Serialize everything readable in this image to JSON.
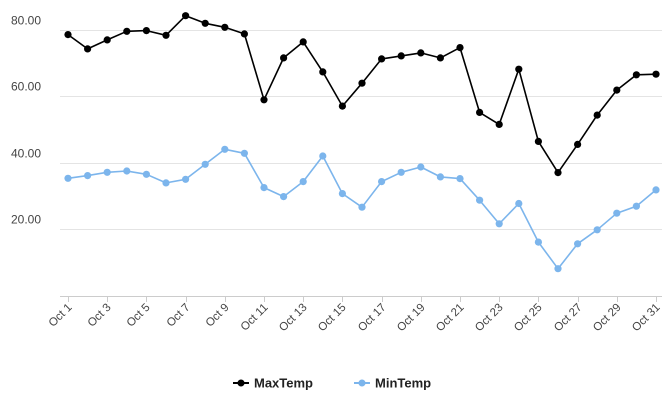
{
  "chart_data": {
    "type": "line",
    "title": "",
    "xlabel": "",
    "ylabel": "",
    "categories": [
      "Oct 1",
      "Oct 2",
      "Oct 3",
      "Oct 4",
      "Oct 5",
      "Oct 6",
      "Oct 7",
      "Oct 8",
      "Oct 9",
      "Oct 10",
      "Oct 11",
      "Oct 12",
      "Oct 13",
      "Oct 14",
      "Oct 15",
      "Oct 16",
      "Oct 17",
      "Oct 18",
      "Oct 19",
      "Oct 20",
      "Oct 21",
      "Oct 22",
      "Oct 23",
      "Oct 24",
      "Oct 25",
      "Oct 26",
      "Oct 27",
      "Oct 28",
      "Oct 29",
      "Oct 30",
      "Oct 31"
    ],
    "tick_labels": [
      "Oct 1",
      "Oct 3",
      "Oct 5",
      "Oct 7",
      "Oct 9",
      "Oct 11",
      "Oct 13",
      "Oct 15",
      "Oct 17",
      "Oct 19",
      "Oct 21",
      "Oct 23",
      "Oct 25",
      "Oct 27",
      "Oct 29",
      "Oct 31"
    ],
    "yticks": [
      {
        "value": 20,
        "label": "20.00"
      },
      {
        "value": 40,
        "label": "40.00"
      },
      {
        "value": 60,
        "label": "60.00"
      },
      {
        "value": 80,
        "label": "80.00"
      }
    ],
    "ylim": [
      0,
      86
    ],
    "grid": true,
    "legend_position": "bottom-center",
    "series": [
      {
        "name": "MaxTemp",
        "color": "#000000",
        "values": [
          78.6,
          74.3,
          77.0,
          79.6,
          79.8,
          78.4,
          84.3,
          82.0,
          80.8,
          78.8,
          59.0,
          71.6,
          76.4,
          67.4,
          57.1,
          64.0,
          71.3,
          72.2,
          73.1,
          71.6,
          74.7,
          55.2,
          51.6,
          68.2,
          46.5,
          37.1,
          45.6,
          54.4,
          61.9,
          66.5,
          66.7
        ]
      },
      {
        "name": "MinTemp",
        "color": "#7cb5ec",
        "values": [
          35.4,
          36.2,
          37.2,
          37.6,
          36.6,
          34.0,
          35.1,
          39.6,
          44.1,
          42.9,
          32.6,
          29.9,
          34.4,
          42.1,
          30.8,
          26.7,
          34.4,
          37.2,
          38.8,
          35.8,
          35.3,
          28.8,
          21.7,
          27.8,
          16.2,
          8.2,
          15.7,
          19.9,
          24.9,
          27.0,
          31.9
        ]
      }
    ]
  }
}
